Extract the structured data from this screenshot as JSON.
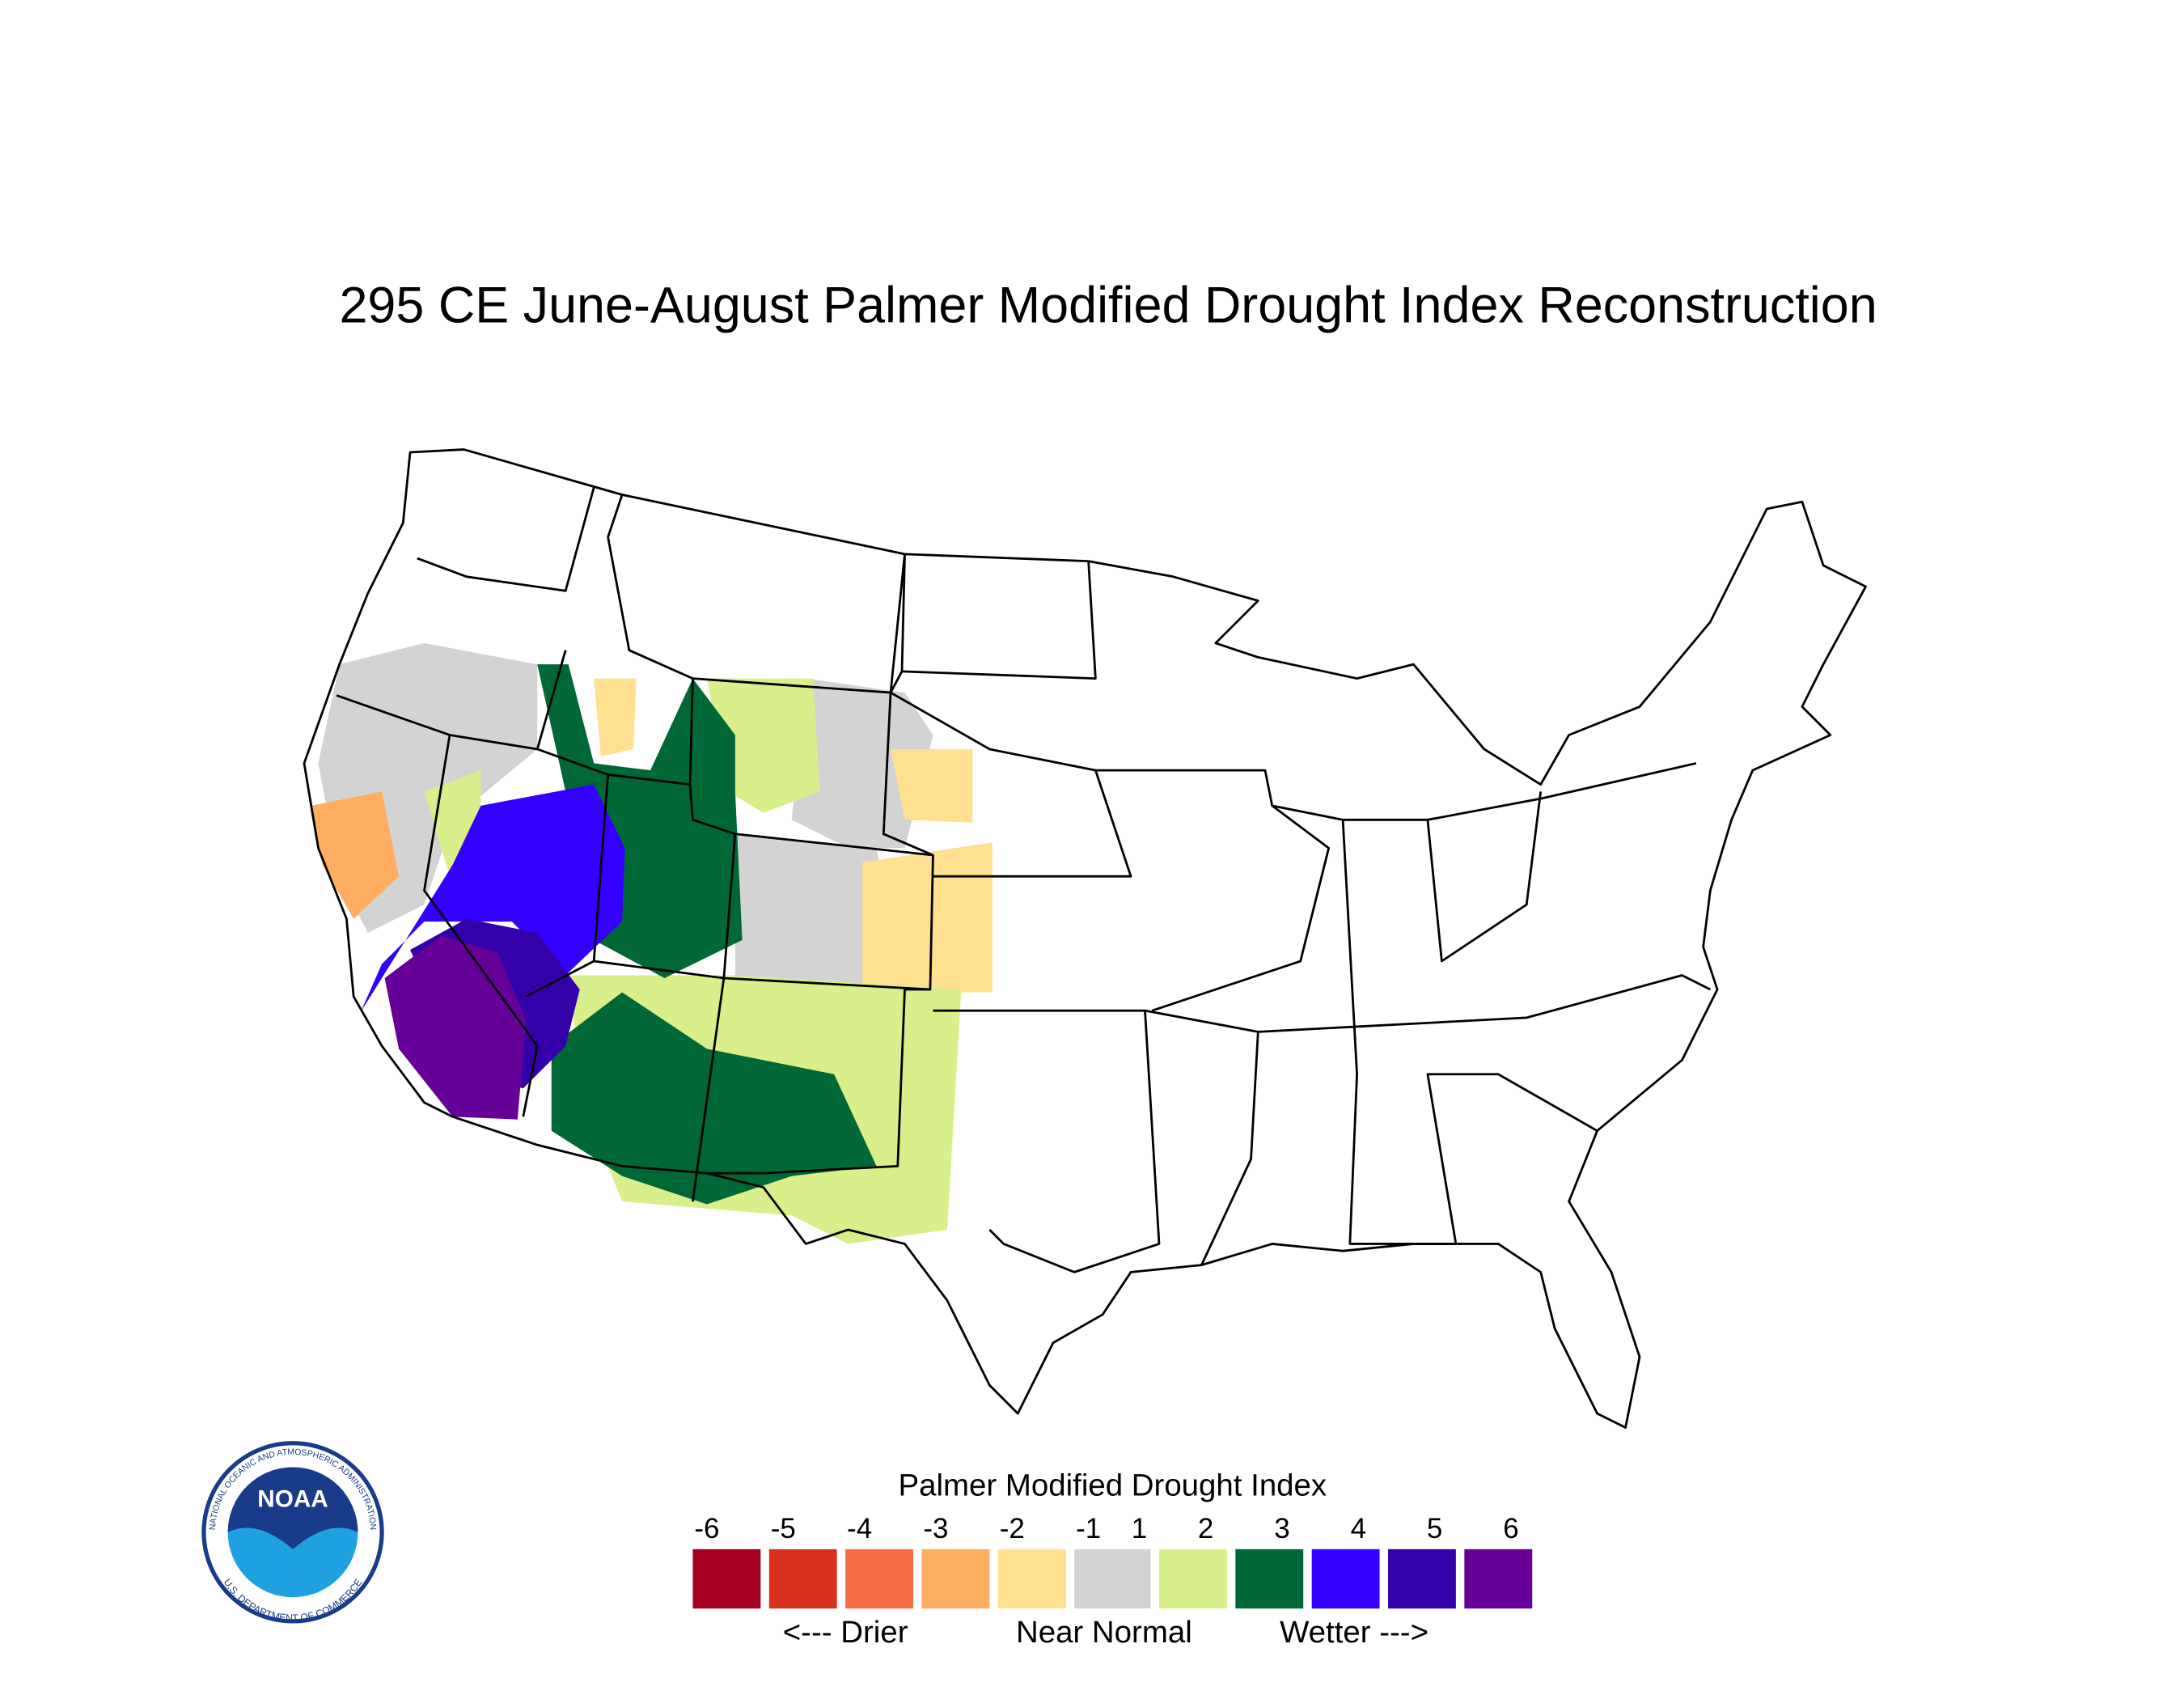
{
  "header": {
    "title": "295 CE  June-August  Palmer Modified Drought Index Reconstruction"
  },
  "legend": {
    "title": "Palmer Modified Drought Index",
    "labels": [
      "-6",
      "-5",
      "-4",
      "-3",
      "-2",
      "-1",
      "1",
      "2",
      "3",
      "4",
      "5",
      "6"
    ],
    "colors": [
      "#a50021",
      "#d7301f",
      "#f26d43",
      "#fdae61",
      "#fee090",
      "#d3d3d3",
      "#d9ef8b",
      "#006837",
      "#3300ff",
      "#3300aa",
      "#660099"
    ],
    "captions": [
      "<--- Drier",
      "Near Normal",
      "Wetter --->"
    ]
  },
  "logo": {
    "name": "NOAA",
    "ring_top": "NATIONAL OCEANIC AND ATMOSPHERIC ADMINISTRATION",
    "ring_bottom": "U.S. DEPARTMENT OF COMMERCE"
  }
}
